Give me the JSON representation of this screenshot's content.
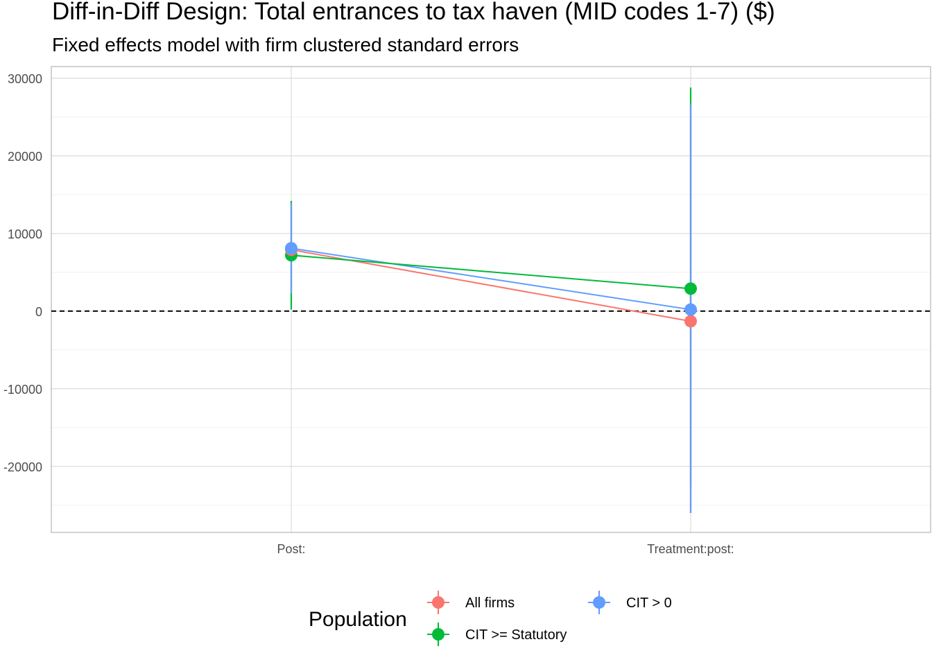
{
  "chart_data": {
    "type": "scatter",
    "title": "Diff-in-Diff Design: Total entrances to tax haven (MID codes 1-7)  ($)",
    "subtitle": "Fixed effects model with firm clustered standard errors",
    "categories": [
      "Post:",
      "Treatment:post:"
    ],
    "ylim": [
      -28500,
      31500
    ],
    "yticks": [
      30000,
      20000,
      10000,
      0,
      -10000,
      -20000
    ],
    "ytick_labels": [
      "30000",
      "20000",
      "10000",
      "0",
      "-10000",
      "-20000"
    ],
    "reference_line": 0,
    "grid": true,
    "legend": {
      "title": "Population",
      "placement": "bottom",
      "entries": [
        "All firms",
        "CIT > 0",
        "CIT >= Statutory"
      ]
    },
    "series": [
      {
        "name": "All firms",
        "color": "#F8766D",
        "values": [
          7900,
          -1300
        ],
        "lower": [
          2700,
          -26000
        ],
        "upper": [
          13900,
          26500
        ]
      },
      {
        "name": "CIT > 0",
        "color": "#619CFF",
        "values": [
          8100,
          200
        ],
        "lower": [
          2300,
          -26000
        ],
        "upper": [
          13900,
          26600
        ]
      },
      {
        "name": "CIT >= Statutory",
        "color": "#00BA38",
        "values": [
          7200,
          2900
        ],
        "lower": [
          200,
          -22600
        ],
        "upper": [
          14200,
          28800
        ]
      }
    ]
  }
}
